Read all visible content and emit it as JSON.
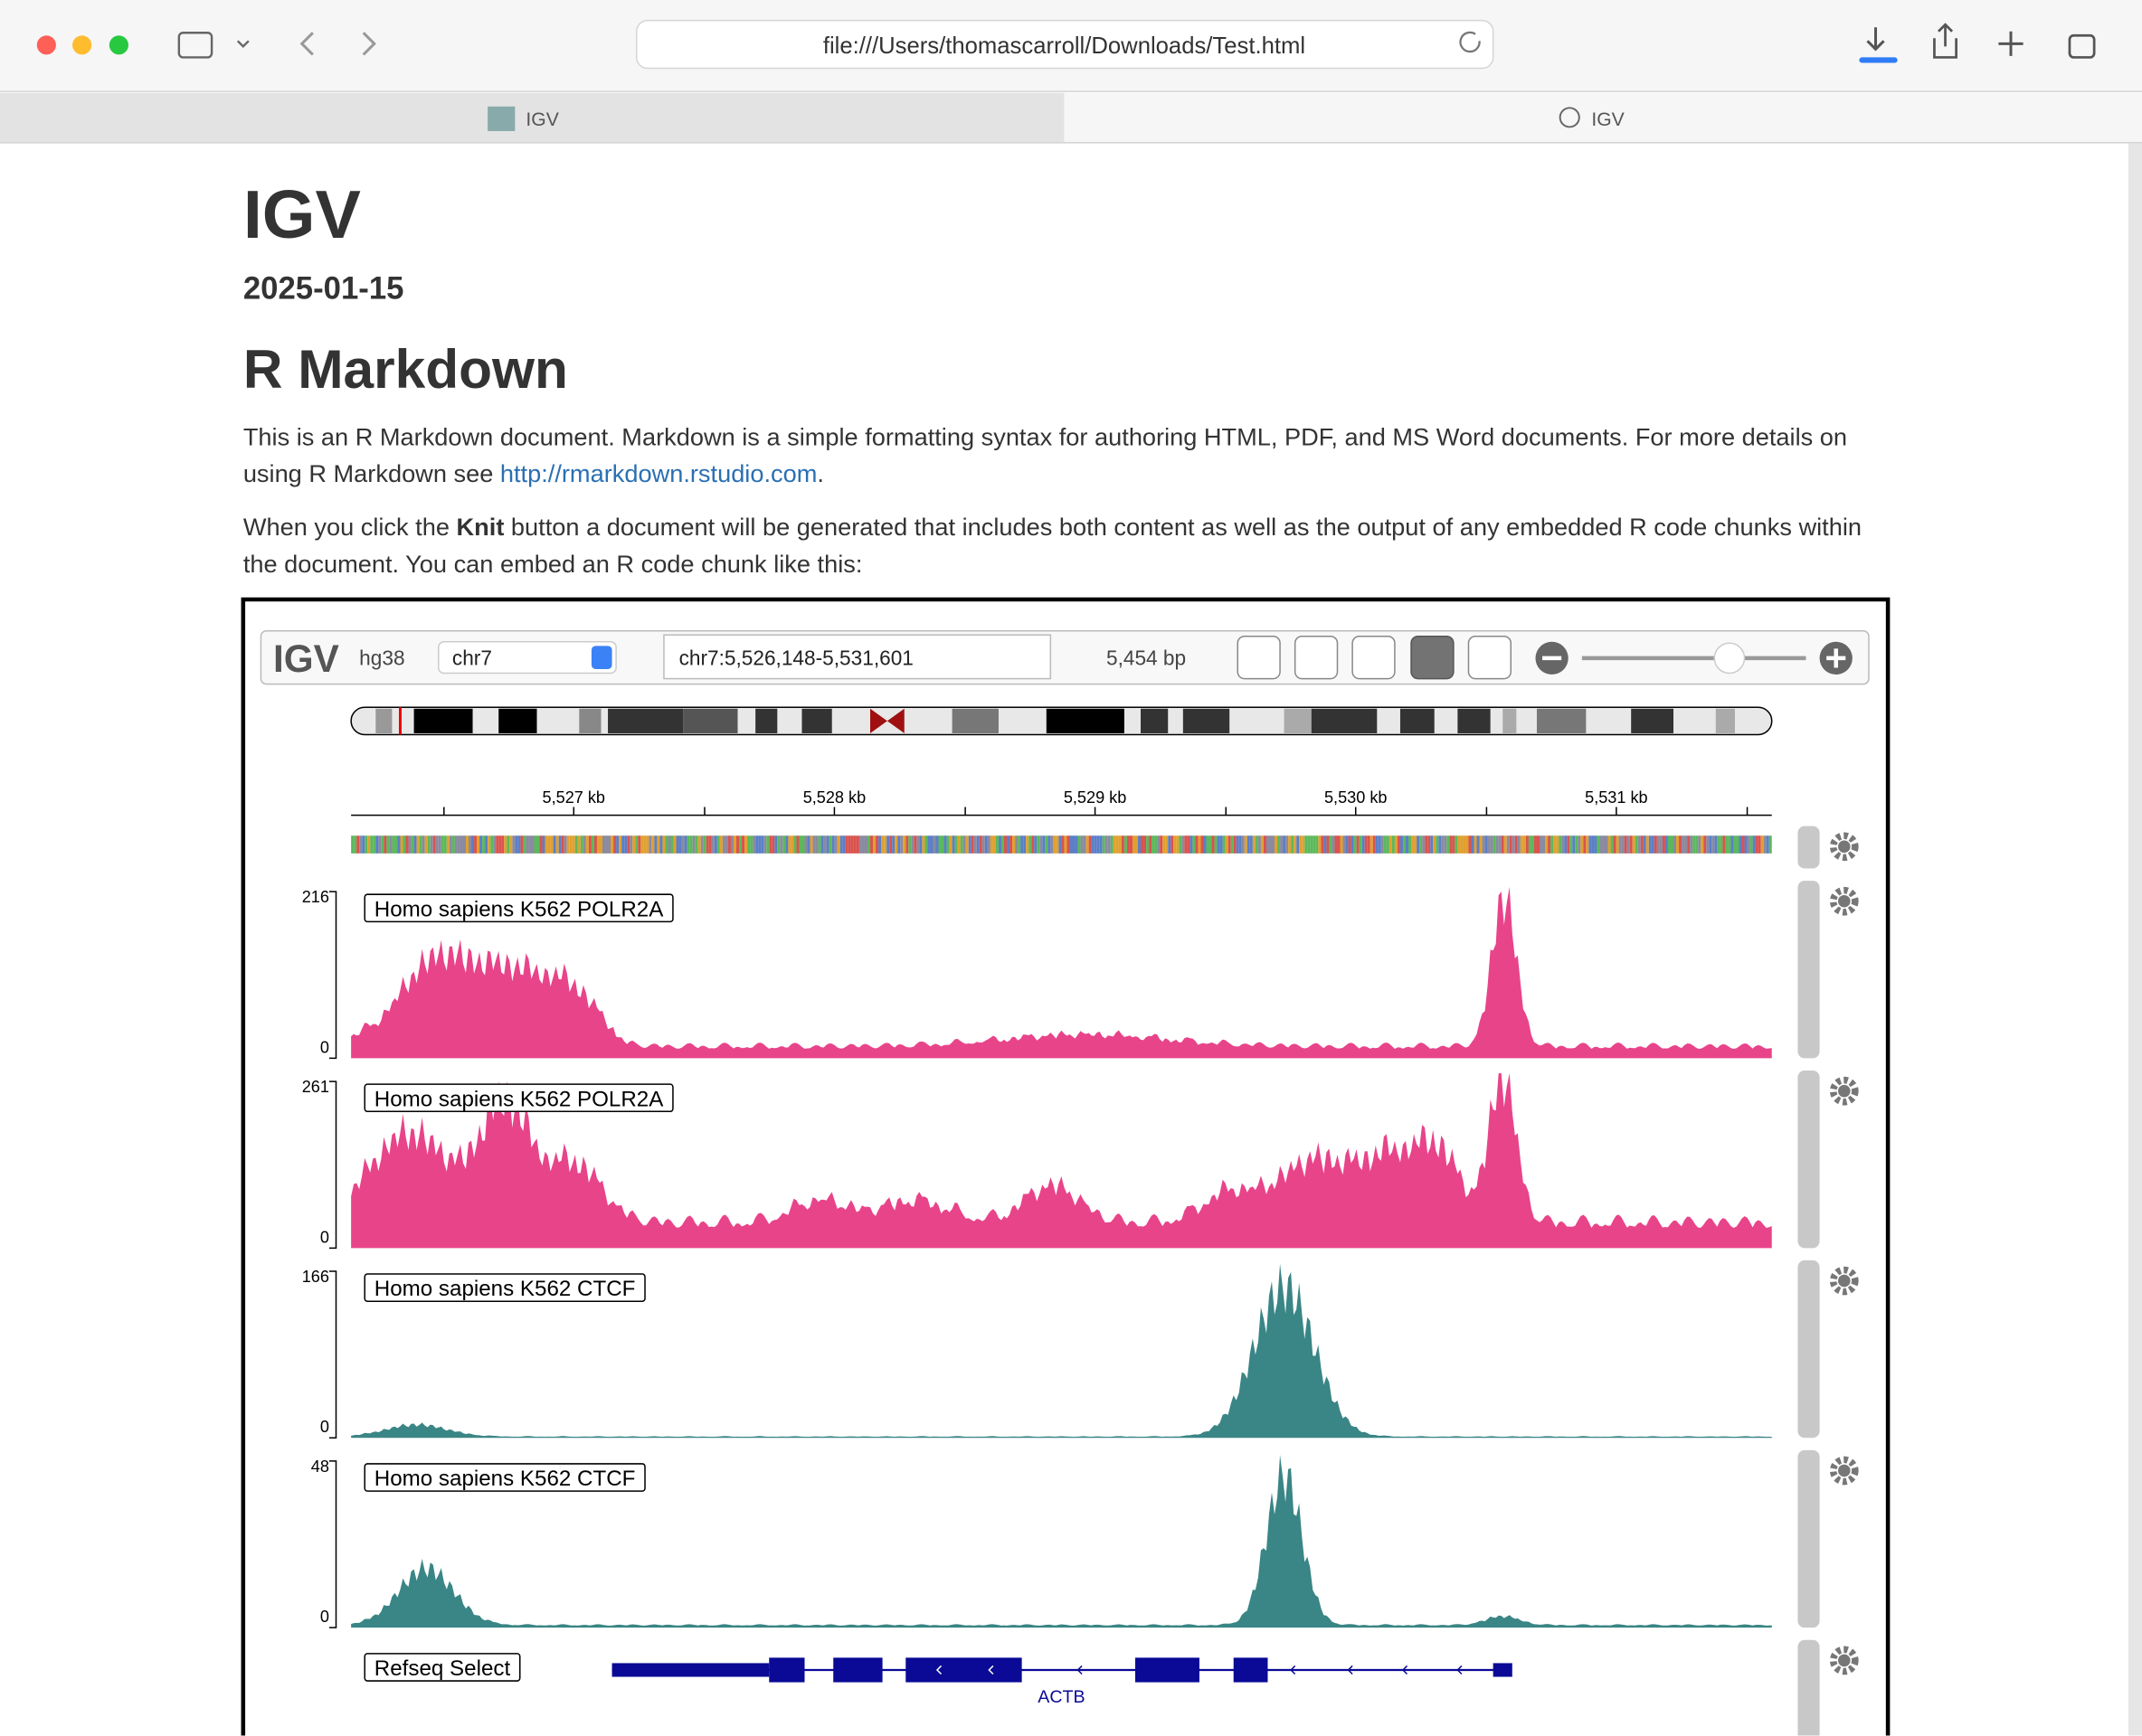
{
  "browser": {
    "url": "file:///Users/thomascarroll/Downloads/Test.html",
    "tabs": [
      "IGV",
      "IGV"
    ]
  },
  "document": {
    "title": "IGV",
    "date": "2025-01-15",
    "heading": "R Markdown",
    "paragraphs": [
      {
        "text": "This is an R Markdown document. Markdown is a simple formatting syntax for authoring HTML, PDF, and MS Word documents. For more details on using R Markdown see ",
        "link": "http://rmarkdown.rstudio.com",
        "after": "."
      },
      {
        "text": "When you click the ",
        "bold": "Knit",
        "after": " button a document will be generated that includes both content as well as the output of any embedded R code chunks within the document. You can embed an R code chunk like this:"
      }
    ]
  },
  "igv": {
    "logo": "IGV",
    "genome": "hg38",
    "chromosome": "chr7",
    "locus": "chr7:5,526,148-5,531,601",
    "width": "5,454 bp",
    "ruler_ticks": [
      "5,527 kb",
      "5,528 kb",
      "5,529 kb",
      "5,530 kb",
      "5,531 kb"
    ],
    "tracks": [
      {
        "name": "Homo sapiens K562 POLR2A",
        "max": 216,
        "min": 0,
        "color": "#e8448a"
      },
      {
        "name": "Homo sapiens K562 POLR2A",
        "max": 261,
        "min": 0,
        "color": "#e8448a"
      },
      {
        "name": "Homo sapiens K562 CTCF",
        "max": 166,
        "min": 0,
        "color": "#3a8585"
      },
      {
        "name": "Homo sapiens K562 CTCF",
        "max": 48,
        "min": 0,
        "color": "#3a8585"
      }
    ],
    "gene_track": {
      "name": "Refseq Select",
      "gene": "ACTB",
      "color": "#0a0a96"
    }
  }
}
